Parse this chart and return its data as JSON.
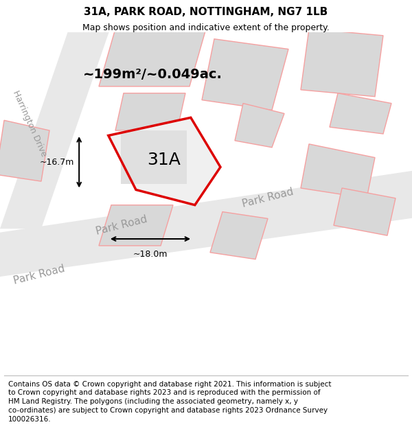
{
  "title_line1": "31A, PARK ROAD, NOTTINGHAM, NG7 1LB",
  "title_line2": "Map shows position and indicative extent of the property.",
  "footer_lines": [
    "Contains OS data © Crown copyright and database right 2021. This information is subject",
    "to Crown copyright and database rights 2023 and is reproduced with the permission of",
    "HM Land Registry. The polygons (including the associated geometry, namely x, y",
    "co-ordinates) are subject to Crown copyright and database rights 2023 Ordnance Survey",
    "100026316."
  ],
  "bg_color": "#ffffff",
  "map_bg": "#f0f0f0",
  "area_label": "~199m²/~0.049ac.",
  "plot_label": "31A",
  "dim_width": "~18.0m",
  "dim_height": "~16.7m",
  "road_label_center": "Park Road",
  "road_label_right": "Park Road",
  "road_label_bottom_left": "Park Road",
  "side_road_label": "Harrington Drive",
  "road_color": "#e8e8e8",
  "building_face": "#d8d8d8",
  "building_edge": "#f5a0a0",
  "plot_red": "#dd0000",
  "plot_face": "#f0f0f0",
  "inner_face": "#e0e0e0",
  "title_fontsize": 11,
  "subtitle_fontsize": 9,
  "footer_fontsize": 7.5,
  "area_fontsize": 14,
  "plot_label_fontsize": 18,
  "road_fontsize": 11
}
